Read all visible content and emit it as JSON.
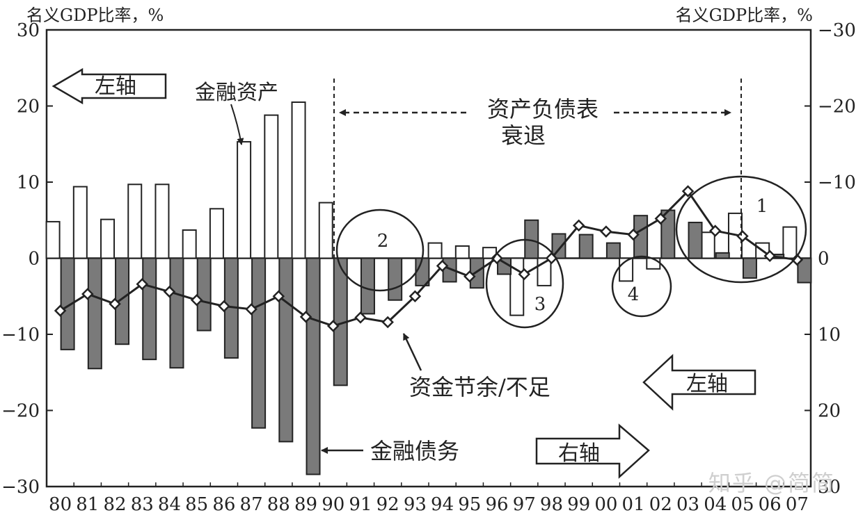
{
  "chart_data": {
    "type": "bar",
    "left_axis_title": "名义GDP比率，%",
    "right_axis_title": "名义GDP比率，%",
    "left_ticks": [
      "30",
      "20",
      "10",
      "0",
      "−10",
      "−20",
      "−30"
    ],
    "right_ticks": [
      "−30",
      "−20",
      "−10",
      "0",
      "10",
      "20",
      "30"
    ],
    "ylim": [
      -30,
      30
    ],
    "categories": [
      "80",
      "81",
      "82",
      "83",
      "84",
      "85",
      "86",
      "87",
      "88",
      "89",
      "90",
      "91",
      "92",
      "93",
      "94",
      "95",
      "96",
      "97",
      "98",
      "99",
      "00",
      "01",
      "02",
      "03",
      "04",
      "05",
      "06",
      "07"
    ],
    "series": [
      {
        "name": "金融资产",
        "axis": "left",
        "values": [
          4.8,
          9.4,
          5.1,
          9.7,
          9.7,
          3.7,
          6.5,
          15.3,
          18.8,
          20.5,
          7.3,
          0,
          0,
          0,
          2.0,
          1.6,
          1.4,
          -7.5,
          -3.6,
          0,
          0,
          -3.0,
          -1.4,
          0,
          3.4,
          5.9,
          2.0,
          4.1
        ]
      },
      {
        "name": "金融债务",
        "axis": "left",
        "values": [
          -12.0,
          -14.5,
          -11.3,
          -13.3,
          -14.4,
          -9.5,
          -13.1,
          -22.3,
          -24.1,
          -28.4,
          -16.7,
          -7.3,
          -5.5,
          -3.6,
          -3.1,
          -3.9,
          -2.1,
          5.0,
          3.2,
          3.1,
          2.0,
          5.6,
          6.3,
          4.7,
          0.7,
          -2.6,
          0.5,
          -3.2
        ]
      },
      {
        "name": "资金节余/不足",
        "axis": "right",
        "values": [
          6.9,
          4.7,
          6.0,
          3.4,
          4.4,
          5.5,
          6.3,
          6.7,
          5.0,
          7.7,
          8.9,
          7.8,
          8.4,
          5.0,
          1.0,
          2.4,
          0.0,
          2.1,
          0.0,
          -4.3,
          -3.5,
          -3.1,
          -5.2,
          -8.8,
          -3.6,
          -2.9,
          -0.3,
          0.2
        ]
      }
    ],
    "annotations": {
      "left_axis_arrow_top": "左轴",
      "left_axis_arrow_bottom": "左轴",
      "right_axis_arrow": "右轴",
      "assets_label": "金融资产",
      "liabilities_label": "金融债务",
      "balance_label": "资金节余/不足",
      "recession_line1": "资产负债表",
      "recession_line2": "衰退",
      "circle_labels": [
        "1",
        "2",
        "3",
        "4"
      ]
    }
  },
  "watermark": "知乎 @简简"
}
